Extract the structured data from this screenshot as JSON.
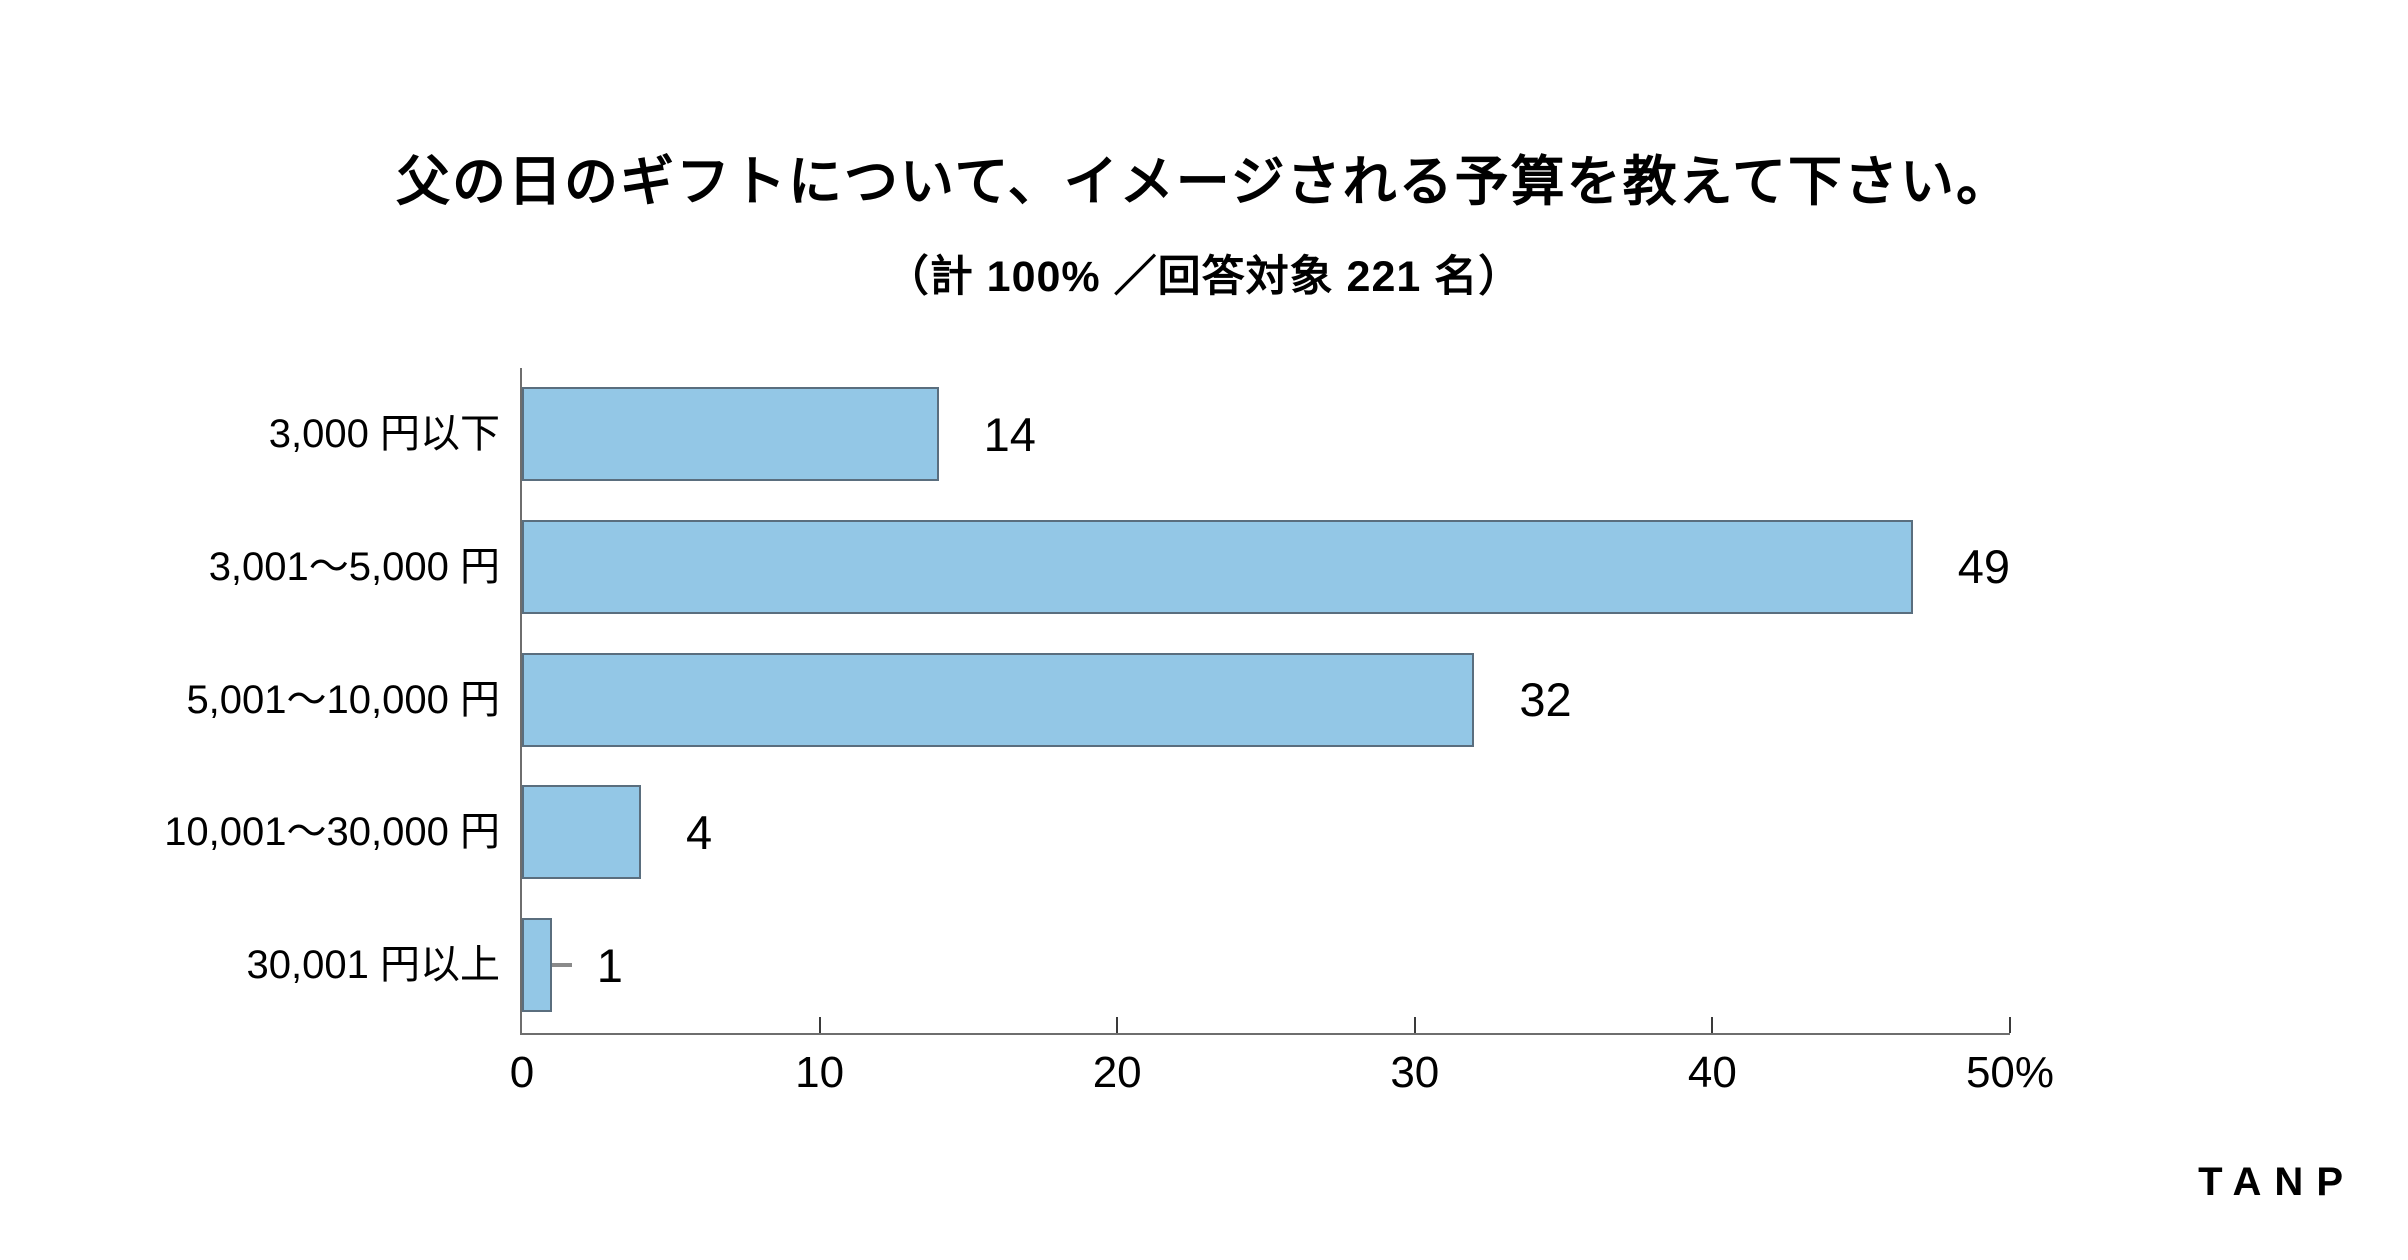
{
  "page": {
    "background": "#ffffff"
  },
  "chart_data": {
    "type": "bar",
    "orientation": "horizontal",
    "title": "父の日のギフトについて、イメージされる予算を教えて下さい。",
    "subtitle": "（計 100% ／回答対象 221 名）",
    "categories": [
      "3,000 円以下",
      "3,001〜5,000 円",
      "5,001〜10,000 円",
      "10,001〜30,000 円",
      "30,001 円以上"
    ],
    "values": [
      14,
      49,
      32,
      4,
      1
    ],
    "unit": "%",
    "xlabel": "",
    "ylabel": "",
    "xlim": [
      0,
      50
    ],
    "x_tick_values": [
      0,
      10,
      20,
      30,
      40,
      50
    ],
    "x_tick_labels": [
      "0",
      "10",
      "20",
      "30",
      "40",
      "50%"
    ],
    "grid": false,
    "legend": false,
    "value_labels_shown": true,
    "bar_color": "#93C7E6",
    "bar_border_color": "#5A6E7E",
    "axis_color": "#6e6e6e",
    "stray_dash_on_last_bar": true
  },
  "footer": {
    "logo": "TANP"
  }
}
